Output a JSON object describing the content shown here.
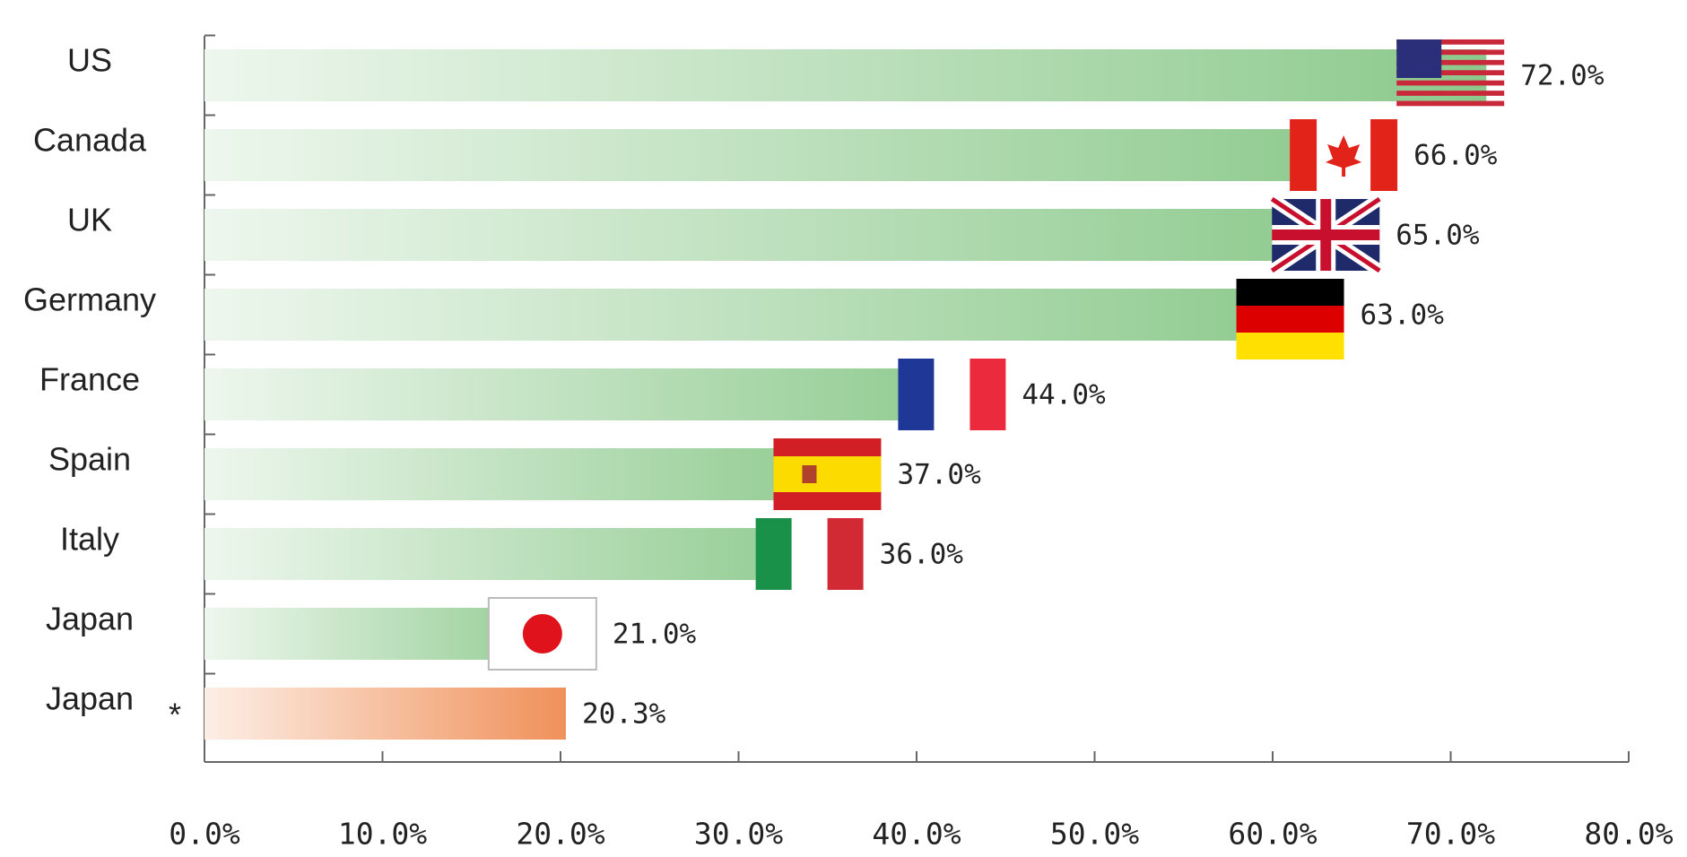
{
  "chart_data": {
    "type": "barh",
    "categories": [
      "US",
      "Canada",
      "UK",
      "Germany",
      "France",
      "Spain",
      "Italy",
      "Japan",
      "Japan"
    ],
    "values": [
      72,
      66,
      65,
      63,
      44,
      37,
      36,
      21,
      20.3
    ],
    "value_labels": [
      "72.0%",
      "66.0%",
      "65.0%",
      "63.0%",
      "44.0%",
      "37.0%",
      "36.0%",
      "21.0%",
      "20.3%"
    ],
    "colors": [
      "#8cc98c",
      "#8cc98c",
      "#8cc98c",
      "#8cc98c",
      "#8cc98c",
      "#8cc98c",
      "#8cc98c",
      "#8cc98c",
      "#f0915a"
    ],
    "annotations": [
      "*"
    ],
    "xlim": [
      0,
      80
    ],
    "xticks": [
      {
        "value": 0,
        "label": "0.0%"
      },
      {
        "value": 10,
        "label": "10.0%"
      },
      {
        "value": 20,
        "label": "20.0%"
      },
      {
        "value": 30,
        "label": "30.0%"
      },
      {
        "value": 40,
        "label": "40.0%"
      },
      {
        "value": 50,
        "label": "50.0%"
      },
      {
        "value": 60,
        "label": "60.0%"
      },
      {
        "value": 70,
        "label": "70.0%"
      },
      {
        "value": 80,
        "label": "80.0%"
      }
    ]
  }
}
